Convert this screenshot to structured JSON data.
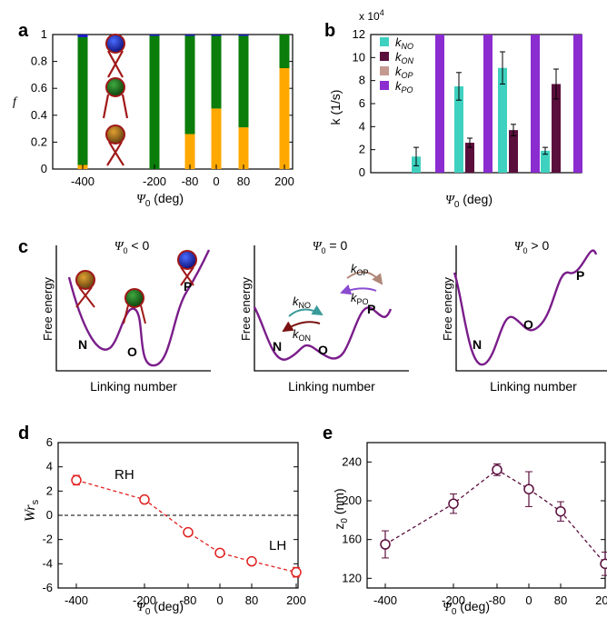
{
  "chart_data": [
    {
      "panel": "a",
      "type": "bar",
      "stacked": true,
      "categories": [
        "-400",
        "-200",
        "-80",
        "0",
        "80",
        "200"
      ],
      "ylabel": "f",
      "xlabel": "Ψ0 (deg)",
      "ylim": [
        0,
        1
      ],
      "yticks": [
        "0",
        "0.2",
        "0.4",
        "0.6",
        "0.8",
        "1"
      ],
      "series": [
        {
          "state": "N",
          "color": "#ffa800",
          "values": [
            0.03,
            0.0,
            0.26,
            0.45,
            0.31,
            0.75
          ]
        },
        {
          "state": "O",
          "color": "#0a7d0a",
          "values": [
            0.95,
            0.99,
            0.73,
            0.54,
            0.68,
            0.25
          ]
        },
        {
          "state": "P",
          "color": "#1919c8",
          "values": [
            0.02,
            0.01,
            0.01,
            0.01,
            0.01,
            0.0
          ]
        }
      ],
      "insets": [
        "P-state-bead",
        "O-state-bead",
        "N-state-bead"
      ]
    },
    {
      "panel": "b",
      "type": "bar",
      "xlabel": "Ψ0 (deg)",
      "ylabel": "k (1/s)",
      "yscale_label": "x 10^4",
      "yscale_prefix": "x 10",
      "yscale_exp": "4",
      "ylim": [
        0,
        12
      ],
      "yticks": [
        "0",
        "2",
        "4",
        "6",
        "8",
        "10",
        "12"
      ],
      "legend": [
        "kNO",
        "kON",
        "kOP",
        "kPO"
      ],
      "legend_sub": [
        "NO",
        "ON",
        "OP",
        "PO"
      ],
      "legend_placement": "top-left",
      "colors": {
        "kNO": "#3fd1c0",
        "kON": "#5a0e3c",
        "kOP": "#c49a90",
        "kPO": "#8a2ccf"
      },
      "groups": [
        {
          "kNO": 1.4,
          "kNO_err": 0.8,
          "kPO": 12
        },
        {
          "kNO": 7.5,
          "kNO_err": 1.2,
          "kON": 2.6,
          "kON_err": 0.4,
          "kPO": 12
        },
        {
          "kNO": 9.1,
          "kNO_err": 1.4,
          "kON": 3.7,
          "kON_err": 0.5,
          "kPO": 12
        },
        {
          "kNO": 1.9,
          "kNO_err": 0.3,
          "kON": 7.7,
          "kON_err": 1.3,
          "kPO": 12
        }
      ]
    },
    {
      "panel": "c",
      "type": "diagram",
      "subplots": [
        {
          "title_prefix": "Ψ",
          "title_sub": "0",
          "title_suffix": " < 0",
          "states": [
            "N",
            "O",
            "P"
          ]
        },
        {
          "title_prefix": "Ψ",
          "title_sub": "0",
          "title_suffix": " = 0",
          "states": [
            "N",
            "O",
            "P"
          ],
          "rates": [
            {
              "k": "k",
              "sub": "NO"
            },
            {
              "k": "k",
              "sub": "ON"
            },
            {
              "k": "k",
              "sub": "OP"
            },
            {
              "k": "k",
              "sub": "PO"
            }
          ]
        },
        {
          "title_prefix": "Ψ",
          "title_sub": "0",
          "title_suffix": " > 0",
          "states": [
            "N",
            "O",
            "P"
          ]
        }
      ],
      "ylabel": "Free energy",
      "xlabel": "Linking number"
    },
    {
      "panel": "d",
      "type": "line",
      "x": [
        -400,
        -200,
        -80,
        0,
        80,
        200
      ],
      "xticks": [
        "-400",
        "-200",
        "-80",
        "0",
        "80",
        "200"
      ],
      "y": [
        2.9,
        1.3,
        -1.4,
        -3.1,
        -3.8,
        -4.7
      ],
      "yerr": [
        0.4,
        0.2,
        0.2,
        0.2,
        0.2,
        0.4
      ],
      "color": "#e02020",
      "ylabel_main": "Wr",
      "ylabel_sub": "s",
      "xlabel": "Ψ0 (deg)",
      "ylim": [
        -6,
        6
      ],
      "yticks": [
        "6",
        "4",
        "2",
        "0",
        "-2",
        "-4",
        "-6"
      ],
      "annotations": [
        "RH",
        "LH"
      ]
    },
    {
      "panel": "e",
      "type": "line",
      "x": [
        -400,
        -200,
        -80,
        0,
        80,
        200
      ],
      "xticks": [
        "-400",
        "-200",
        "-80",
        "0",
        "80",
        "200"
      ],
      "y": [
        155,
        197,
        232,
        212,
        189,
        135
      ],
      "yerr": [
        14,
        10,
        6,
        18,
        10,
        12
      ],
      "color": "#5a0e3c",
      "ylabel": "z0 (nm)",
      "ylabel_main": "z",
      "ylabel_sub": "0",
      "ylabel_unit": " (nm)",
      "xlabel": "Ψ0 (deg)",
      "ylim": [
        110,
        260
      ],
      "yticks": [
        "240",
        "200",
        "160",
        "120"
      ]
    }
  ],
  "panel_letters": [
    "a",
    "b",
    "c",
    "d",
    "e"
  ],
  "xlabel_parts": {
    "psi": "Ψ",
    "sub": "0",
    "unit": " (deg)"
  }
}
